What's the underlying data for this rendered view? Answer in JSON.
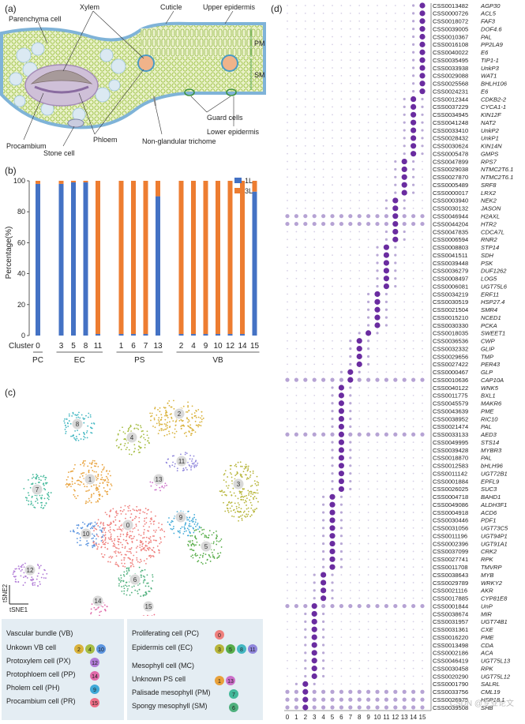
{
  "panel_a": {
    "label": "(a)",
    "annotations": {
      "parenchyma": "Parenchyma cell",
      "xylem": "Xylem",
      "cuticle": "Cuticle",
      "upper_epidermis": "Upper epidermis",
      "pm": "PM",
      "sm": "SM",
      "procambium": "Procambium",
      "stone_cell": "Stone cell",
      "phloem": "Phloem",
      "guard_cells": "Guard cells",
      "lower_epidermis": "Lower epidermis",
      "trichome": "Non-glandular trichome"
    }
  },
  "panel_b": {
    "label": "(b)",
    "chart_data": {
      "type": "bar",
      "title": "",
      "xlabel": "Cluster",
      "ylabel": "Percentage(%)",
      "ylim": [
        0,
        100
      ],
      "yticks": [
        "0",
        "20",
        "40",
        "60",
        "80",
        "100"
      ],
      "categories": [
        "0",
        "3",
        "5",
        "8",
        "11",
        "1",
        "6",
        "7",
        "13",
        "2",
        "4",
        "9",
        "10",
        "12",
        "14",
        "15"
      ],
      "series": [
        {
          "name": "1L",
          "color": "#4472c4",
          "values": [
            98,
            98,
            99,
            99,
            1,
            1,
            1,
            1,
            90,
            1,
            1,
            1,
            1,
            1,
            1,
            93
          ]
        },
        {
          "name": "3L",
          "color": "#ed7d31",
          "values": [
            2,
            2,
            1,
            1,
            99,
            99,
            99,
            99,
            10,
            99,
            99,
            99,
            99,
            99,
            99,
            7
          ]
        }
      ],
      "groups": [
        {
          "name": "PC",
          "clusters": [
            "0"
          ]
        },
        {
          "name": "EC",
          "clusters": [
            "3",
            "5",
            "8",
            "11"
          ]
        },
        {
          "name": "PS",
          "clusters": [
            "1",
            "6",
            "7",
            "13"
          ]
        },
        {
          "name": "VB",
          "clusters": [
            "2",
            "4",
            "9",
            "10",
            "12",
            "14",
            "15"
          ]
        }
      ]
    }
  },
  "panel_c": {
    "label": "(c)",
    "axis_x": "tSNE1",
    "axis_y": "tSNE2",
    "clusters": [
      {
        "id": "0",
        "color": "#ef7f7c"
      },
      {
        "id": "1",
        "color": "#e8a13a"
      },
      {
        "id": "2",
        "color": "#d9b23b"
      },
      {
        "id": "3",
        "color": "#b7b53a"
      },
      {
        "id": "4",
        "color": "#a6bd44"
      },
      {
        "id": "5",
        "color": "#58ad4a"
      },
      {
        "id": "6",
        "color": "#4fb07d"
      },
      {
        "id": "7",
        "color": "#44b99b"
      },
      {
        "id": "8",
        "color": "#43b7c2"
      },
      {
        "id": "9",
        "color": "#3fa9d8"
      },
      {
        "id": "10",
        "color": "#5c95e0"
      },
      {
        "id": "11",
        "color": "#8f86dc"
      },
      {
        "id": "12",
        "color": "#b07ad6"
      },
      {
        "id": "13",
        "color": "#cc6fc9"
      },
      {
        "id": "14",
        "color": "#e06aa9"
      },
      {
        "id": "15",
        "color": "#ee6d86"
      }
    ],
    "legend": {
      "vb_header": "Vascular bundle (VB)",
      "vb_unknown": "Unkown VB cell",
      "vb_unknown_ids": [
        "2",
        "4",
        "10"
      ],
      "px": "Protoxylem cell (PX)",
      "px_ids": [
        "12"
      ],
      "pp": "Protophloem cell (PP)",
      "pp_ids": [
        "14"
      ],
      "ph": "Pholem cell (PH)",
      "ph_ids": [
        "9"
      ],
      "pr": "Procambium cell (PR)",
      "pr_ids": [
        "15"
      ],
      "pc": "Proliferating cell (PC)",
      "pc_ids": [
        "0"
      ],
      "ec": "Epidermis cell (EC)",
      "ec_ids": [
        "3",
        "5",
        "8",
        "11"
      ],
      "mc_header": "Mesophyll cell (MC)",
      "ps_unknown": "Unknown PS cell",
      "ps_unknown_ids": [
        "1",
        "13"
      ],
      "pm": "Palisade mesophyll (PM)",
      "pm_ids": [
        "7"
      ],
      "sm": "Spongy mesophyll (SM)",
      "sm_ids": [
        "6"
      ]
    }
  },
  "panel_d": {
    "label": "(d)",
    "xticks": [
      "0",
      "1",
      "2",
      "3",
      "4",
      "5",
      "6",
      "7",
      "8",
      "9",
      "10",
      "11",
      "12",
      "13",
      "14",
      "15"
    ],
    "genes": [
      {
        "id": "CSS0013482",
        "name": "AGP30",
        "peak": 15
      },
      {
        "id": "CSS0000726",
        "name": "ACL5",
        "peak": 15
      },
      {
        "id": "CSS0018072",
        "name": "FAF3",
        "peak": 15
      },
      {
        "id": "CSS0039005",
        "name": "DOF4.6",
        "peak": 15
      },
      {
        "id": "CSS0010367",
        "name": "PAL",
        "peak": 15
      },
      {
        "id": "CSS0016108",
        "name": "PP2LA9",
        "peak": 15
      },
      {
        "id": "CSS0040022",
        "name": "E6",
        "peak": 15
      },
      {
        "id": "CSS0035495",
        "name": "TIP1-1",
        "peak": 15
      },
      {
        "id": "CSS0033938",
        "name": "UnkP3",
        "peak": 15
      },
      {
        "id": "CSS0029088",
        "name": "WAT1",
        "peak": 15
      },
      {
        "id": "CSS0025568",
        "name": "BHLH106",
        "peak": 15
      },
      {
        "id": "CSS0024231",
        "name": "E6",
        "peak": 15
      },
      {
        "id": "CSS0012344",
        "name": "CDKB2-2",
        "peak": 14
      },
      {
        "id": "CSS0037229",
        "name": "CYCA1-1",
        "peak": 14
      },
      {
        "id": "CSS0034945",
        "name": "KIN12F",
        "peak": 14
      },
      {
        "id": "CSS0041248",
        "name": "NAT2",
        "peak": 14
      },
      {
        "id": "CSS0033410",
        "name": "UnkP2",
        "peak": 14
      },
      {
        "id": "CSS0028432",
        "name": "UnkP1",
        "peak": 14
      },
      {
        "id": "CSS0030624",
        "name": "KIN14N",
        "peak": 14
      },
      {
        "id": "CSS0005478",
        "name": "GMPS",
        "peak": 14
      },
      {
        "id": "CSS0047899",
        "name": "RPS7",
        "peak": 13
      },
      {
        "id": "CSS0029038",
        "name": "NTMC2T6.1",
        "peak": 13
      },
      {
        "id": "CSS0027870",
        "name": "NTMC2T6.1",
        "peak": 13
      },
      {
        "id": "CSS0005489",
        "name": "SRF8",
        "peak": 13
      },
      {
        "id": "CSS0000017",
        "name": "LRX2",
        "peak": 13
      },
      {
        "id": "CSS0003940",
        "name": "NEK2",
        "peak": 12
      },
      {
        "id": "CSS0030132",
        "name": "JASON",
        "peak": 12
      },
      {
        "id": "CSS0046944",
        "name": "H2AXL",
        "peak": 12
      },
      {
        "id": "CSS0044204",
        "name": "HTR2",
        "peak": 12
      },
      {
        "id": "CSS0047835",
        "name": "CDCA7L",
        "peak": 12
      },
      {
        "id": "CSS0006594",
        "name": "RNR2",
        "peak": 12
      },
      {
        "id": "CSS0008803",
        "name": "STP14",
        "peak": 11
      },
      {
        "id": "CSS0041511",
        "name": "SDH",
        "peak": 11
      },
      {
        "id": "CSS0039448",
        "name": "PSK",
        "peak": 11
      },
      {
        "id": "CSS0036279",
        "name": "DUF1262",
        "peak": 11
      },
      {
        "id": "CSS0008497",
        "name": "LOG5",
        "peak": 11
      },
      {
        "id": "CSS0006081",
        "name": "UGT75L6",
        "peak": 11
      },
      {
        "id": "CSS0034219",
        "name": "ERF11",
        "peak": 10
      },
      {
        "id": "CSS0030519",
        "name": "HSP27.4",
        "peak": 10
      },
      {
        "id": "CSS0021504",
        "name": "SMR4",
        "peak": 10
      },
      {
        "id": "CSS0015210",
        "name": "NCED1",
        "peak": 10
      },
      {
        "id": "CSS0030330",
        "name": "PCKA",
        "peak": 10
      },
      {
        "id": "CSS0018035",
        "name": "SWEET1",
        "peak": 9
      },
      {
        "id": "CSS0036536",
        "name": "CWP",
        "peak": 8
      },
      {
        "id": "CSS0032332",
        "name": "GLIP",
        "peak": 8
      },
      {
        "id": "CSS0029656",
        "name": "TMP",
        "peak": 8
      },
      {
        "id": "CSS0027422",
        "name": "PER43",
        "peak": 8
      },
      {
        "id": "CSS0000467",
        "name": "GLP",
        "peak": 7
      },
      {
        "id": "CSS0010636",
        "name": "CAP10A",
        "peak": 7
      },
      {
        "id": "CSS0040122",
        "name": "WNK5",
        "peak": 6
      },
      {
        "id": "CSS0011775",
        "name": "BXL1",
        "peak": 6
      },
      {
        "id": "CSS0045579",
        "name": "MAKR6",
        "peak": 6
      },
      {
        "id": "CSS0043639",
        "name": "PME",
        "peak": 6
      },
      {
        "id": "CSS0038952",
        "name": "RIC10",
        "peak": 6
      },
      {
        "id": "CSS0021474",
        "name": "PAL",
        "peak": 6
      },
      {
        "id": "CSS0033133",
        "name": "AED3",
        "peak": 6
      },
      {
        "id": "CSS0049995",
        "name": "STS14",
        "peak": 6
      },
      {
        "id": "CSS0039428",
        "name": "MYBR3",
        "peak": 6
      },
      {
        "id": "CSS0018870",
        "name": "PAL",
        "peak": 6
      },
      {
        "id": "CSS0012583",
        "name": "bHLH96",
        "peak": 6
      },
      {
        "id": "CSS0011142",
        "name": "UGT72B1",
        "peak": 6
      },
      {
        "id": "CSS0001884",
        "name": "EPFL9",
        "peak": 6
      },
      {
        "id": "CSS0026025",
        "name": "SUC3",
        "peak": 6
      },
      {
        "id": "CSS0004718",
        "name": "BAHD1",
        "peak": 5
      },
      {
        "id": "CSS0049086",
        "name": "ALDH3F1",
        "peak": 5
      },
      {
        "id": "CSS0004918",
        "name": "ACD6",
        "peak": 5
      },
      {
        "id": "CSS0030446",
        "name": "PDF1",
        "peak": 5
      },
      {
        "id": "CSS0031056",
        "name": "UGT73C5",
        "peak": 5
      },
      {
        "id": "CSS0011196",
        "name": "UGT94P1",
        "peak": 5
      },
      {
        "id": "CSS0002396",
        "name": "UGT91A1",
        "peak": 5
      },
      {
        "id": "CSS0037099",
        "name": "CRK2",
        "peak": 5
      },
      {
        "id": "CSS0027741",
        "name": "RPK",
        "peak": 5
      },
      {
        "id": "CSS0011708",
        "name": "TMVRP",
        "peak": 5
      },
      {
        "id": "CSS0038643",
        "name": "MYB",
        "peak": 4
      },
      {
        "id": "CSS0029789",
        "name": "WRKY2",
        "peak": 4
      },
      {
        "id": "CSS0021116",
        "name": "AKR",
        "peak": 4
      },
      {
        "id": "CSS0017885",
        "name": "CYP81E8",
        "peak": 4
      },
      {
        "id": "CSS0001844",
        "name": "UnP",
        "peak": 3
      },
      {
        "id": "CSS0038674",
        "name": "MIR",
        "peak": 3
      },
      {
        "id": "CSS0031957",
        "name": "UGT74B1",
        "peak": 3
      },
      {
        "id": "CSS0031361",
        "name": "CXE",
        "peak": 3
      },
      {
        "id": "CSS0016220",
        "name": "PME",
        "peak": 3
      },
      {
        "id": "CSS0013498",
        "name": "CDA",
        "peak": 3
      },
      {
        "id": "CSS0002186",
        "name": "ACA",
        "peak": 3
      },
      {
        "id": "CSS0046419",
        "name": "UGT75L13",
        "peak": 3
      },
      {
        "id": "CSS0030458",
        "name": "RPK",
        "peak": 3
      },
      {
        "id": "CSS0020290",
        "name": "UGT75L12",
        "peak": 3
      },
      {
        "id": "CSS0001790",
        "name": "SALRL",
        "peak": 2
      },
      {
        "id": "CSS0033756",
        "name": "CML19",
        "peak": 2
      },
      {
        "id": "CSS0026975",
        "name": "HSP18.1",
        "peak": 2
      },
      {
        "id": "CSS0039508",
        "name": "SHB",
        "peak": 2
      }
    ]
  },
  "watermark": "CSDN @专业论文"
}
